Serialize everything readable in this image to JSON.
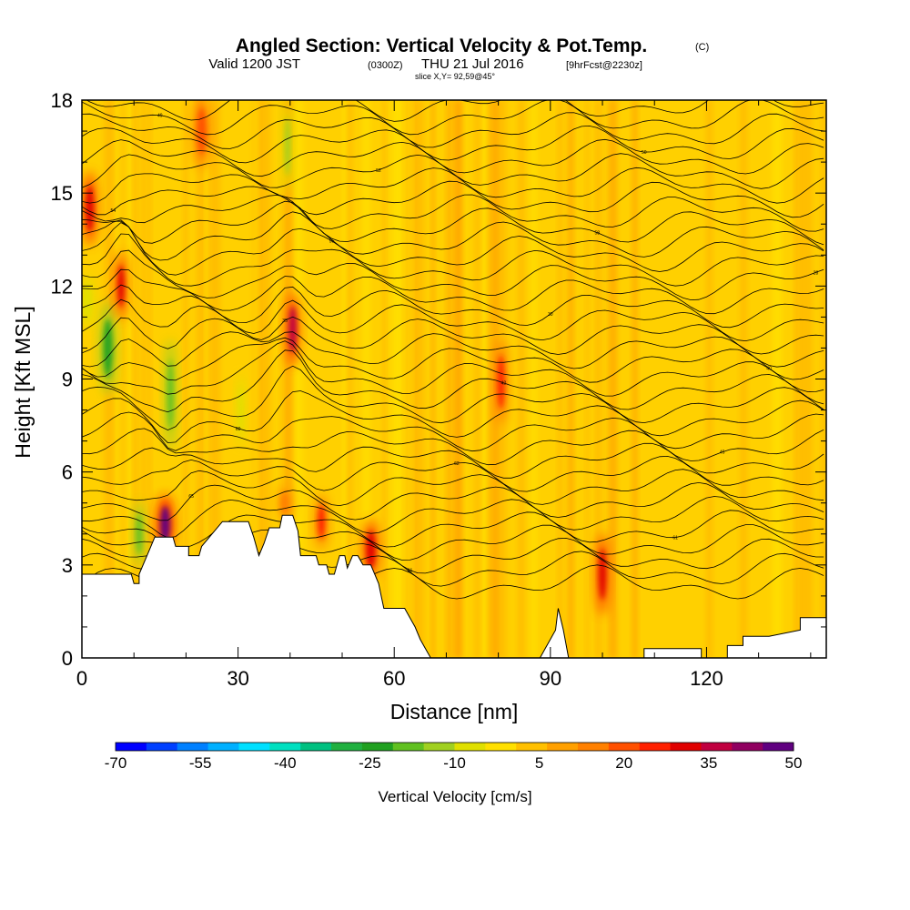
{
  "header": {
    "title": "Angled Section: Vertical Velocity & Pot.Temp.",
    "title_unit": "(C)",
    "valid_prefix": "Valid 1200 JST",
    "valid_utc": "(0300Z)",
    "valid_date": "THU 21 Jul 2016",
    "forecast": "[9hrFcst@2230z]",
    "slice": "slice X,Y= 92,59@45°"
  },
  "chart_data": {
    "type": "heatmap",
    "xlabel": "Distance [nm]",
    "ylabel": "Height [Kft MSL]",
    "xlim": [
      0,
      143
    ],
    "ylim": [
      0,
      18
    ],
    "x_ticks": [
      0,
      30,
      60,
      90,
      120
    ],
    "x_minor_step": 10,
    "y_ticks": [
      0,
      3,
      6,
      9,
      12,
      15,
      18
    ],
    "y_minor_step": 1,
    "background_value_color": "#ffd000",
    "terrain": [
      [
        0,
        2.7
      ],
      [
        9.5,
        2.7
      ],
      [
        10,
        2.4
      ],
      [
        11,
        2.4
      ],
      [
        11,
        2.7
      ],
      [
        13,
        3.5
      ],
      [
        14,
        3.9
      ],
      [
        17.5,
        3.9
      ],
      [
        18,
        3.6
      ],
      [
        20.5,
        3.6
      ],
      [
        20.5,
        3.3
      ],
      [
        22.5,
        3.3
      ],
      [
        23,
        3.6
      ],
      [
        25,
        4.0
      ],
      [
        27,
        4.4
      ],
      [
        32,
        4.4
      ],
      [
        33,
        3.9
      ],
      [
        34,
        3.3
      ],
      [
        35,
        3.7
      ],
      [
        36,
        4.2
      ],
      [
        38,
        4.2
      ],
      [
        38.5,
        4.6
      ],
      [
        40.5,
        4.6
      ],
      [
        41.5,
        4.1
      ],
      [
        42,
        3.3
      ],
      [
        45,
        3.3
      ],
      [
        45.5,
        3.0
      ],
      [
        47,
        3.0
      ],
      [
        47.5,
        2.7
      ],
      [
        48.5,
        2.7
      ],
      [
        49.5,
        3.3
      ],
      [
        50.5,
        3.3
      ],
      [
        51,
        2.9
      ],
      [
        52,
        3.3
      ],
      [
        53,
        3.3
      ],
      [
        54,
        3.0
      ],
      [
        55.5,
        3.0
      ],
      [
        57,
        2.4
      ],
      [
        57.5,
        2.0
      ],
      [
        58,
        1.6
      ],
      [
        62,
        1.6
      ],
      [
        63,
        1.3
      ],
      [
        64,
        1.0
      ],
      [
        65,
        0.6
      ],
      [
        66,
        0.3
      ],
      [
        67,
        0.0
      ],
      [
        88,
        0.0
      ],
      [
        89,
        0.3
      ],
      [
        91,
        0.9
      ],
      [
        91.5,
        1.6
      ],
      [
        92.5,
        0.9
      ],
      [
        93.5,
        0.0
      ],
      [
        108,
        0.0
      ],
      [
        108,
        0.3
      ],
      [
        119,
        0.3
      ],
      [
        119,
        0.0
      ],
      [
        124,
        0.0
      ],
      [
        124,
        0.4
      ],
      [
        127,
        0.4
      ],
      [
        127,
        0.7
      ],
      [
        132,
        0.7
      ],
      [
        138,
        0.9
      ],
      [
        138,
        1.3
      ],
      [
        143,
        1.3
      ]
    ],
    "updrafts": [
      {
        "x": 1.5,
        "y": 14.5,
        "w": 2.2,
        "h": 2.0,
        "v": 30
      },
      {
        "x": 7.5,
        "y": 12.0,
        "w": 1.8,
        "h": 1.8,
        "v": 30
      },
      {
        "x": 23.0,
        "y": 17.0,
        "w": 2.5,
        "h": 2.0,
        "v": 20
      },
      {
        "x": 40.5,
        "y": 10.6,
        "w": 2.2,
        "h": 2.0,
        "v": 35
      },
      {
        "x": 16.0,
        "y": 4.3,
        "w": 2.6,
        "h": 1.6,
        "v": 45
      },
      {
        "x": 46.0,
        "y": 4.4,
        "w": 2.0,
        "h": 1.5,
        "v": 25
      },
      {
        "x": 55.5,
        "y": 3.5,
        "w": 2.5,
        "h": 1.6,
        "v": 30
      },
      {
        "x": 80.5,
        "y": 8.9,
        "w": 2.0,
        "h": 2.3,
        "v": 25
      },
      {
        "x": 100.0,
        "y": 2.7,
        "w": 2.0,
        "h": 2.2,
        "v": 30
      },
      {
        "x": 39.0,
        "y": 5.0,
        "w": 2.5,
        "h": 1.0,
        "v": 15
      }
    ],
    "downdrafts": [
      {
        "x": 5.0,
        "y": 10.0,
        "w": 2.5,
        "h": 2.5,
        "v": -25
      },
      {
        "x": 17.0,
        "y": 8.5,
        "w": 1.7,
        "h": 3.0,
        "v": -20
      },
      {
        "x": 11.0,
        "y": 4.0,
        "w": 1.6,
        "h": 1.8,
        "v": -20
      },
      {
        "x": 39.5,
        "y": 16.5,
        "w": 1.5,
        "h": 2.5,
        "v": -15
      },
      {
        "x": 30.5,
        "y": 8.0,
        "w": 1.2,
        "h": 2.0,
        "v": -10
      },
      {
        "x": 1.0,
        "y": 11.5,
        "w": 1.8,
        "h": 1.5,
        "v": -10
      }
    ],
    "contour_count": 36,
    "contour_labels": [
      "65",
      "66",
      "61",
      "65",
      "62",
      "45",
      "60",
      "42",
      "40",
      "35",
      "30",
      "28",
      "55",
      "58",
      "54",
      "52",
      "50",
      "49",
      "48",
      "46",
      "44",
      "43",
      "41",
      "39",
      "38",
      "36",
      "34",
      "33",
      "32",
      "31",
      "29",
      "27"
    ],
    "colorbar": {
      "label": "Vertical Velocity [cm/s]",
      "ticks": [
        "-70",
        "-55",
        "-40",
        "-25",
        "-10",
        "5",
        "20",
        "35",
        "50"
      ],
      "colors": [
        "#0000ff",
        "#0040ff",
        "#0080ff",
        "#00b0ff",
        "#00e0ff",
        "#00e0c0",
        "#00c080",
        "#20b040",
        "#20a020",
        "#60c020",
        "#a0d020",
        "#e0e000",
        "#ffe000",
        "#ffc000",
        "#ffa000",
        "#ff8000",
        "#ff5000",
        "#ff2000",
        "#e00000",
        "#c00040",
        "#900060",
        "#600080"
      ]
    }
  }
}
